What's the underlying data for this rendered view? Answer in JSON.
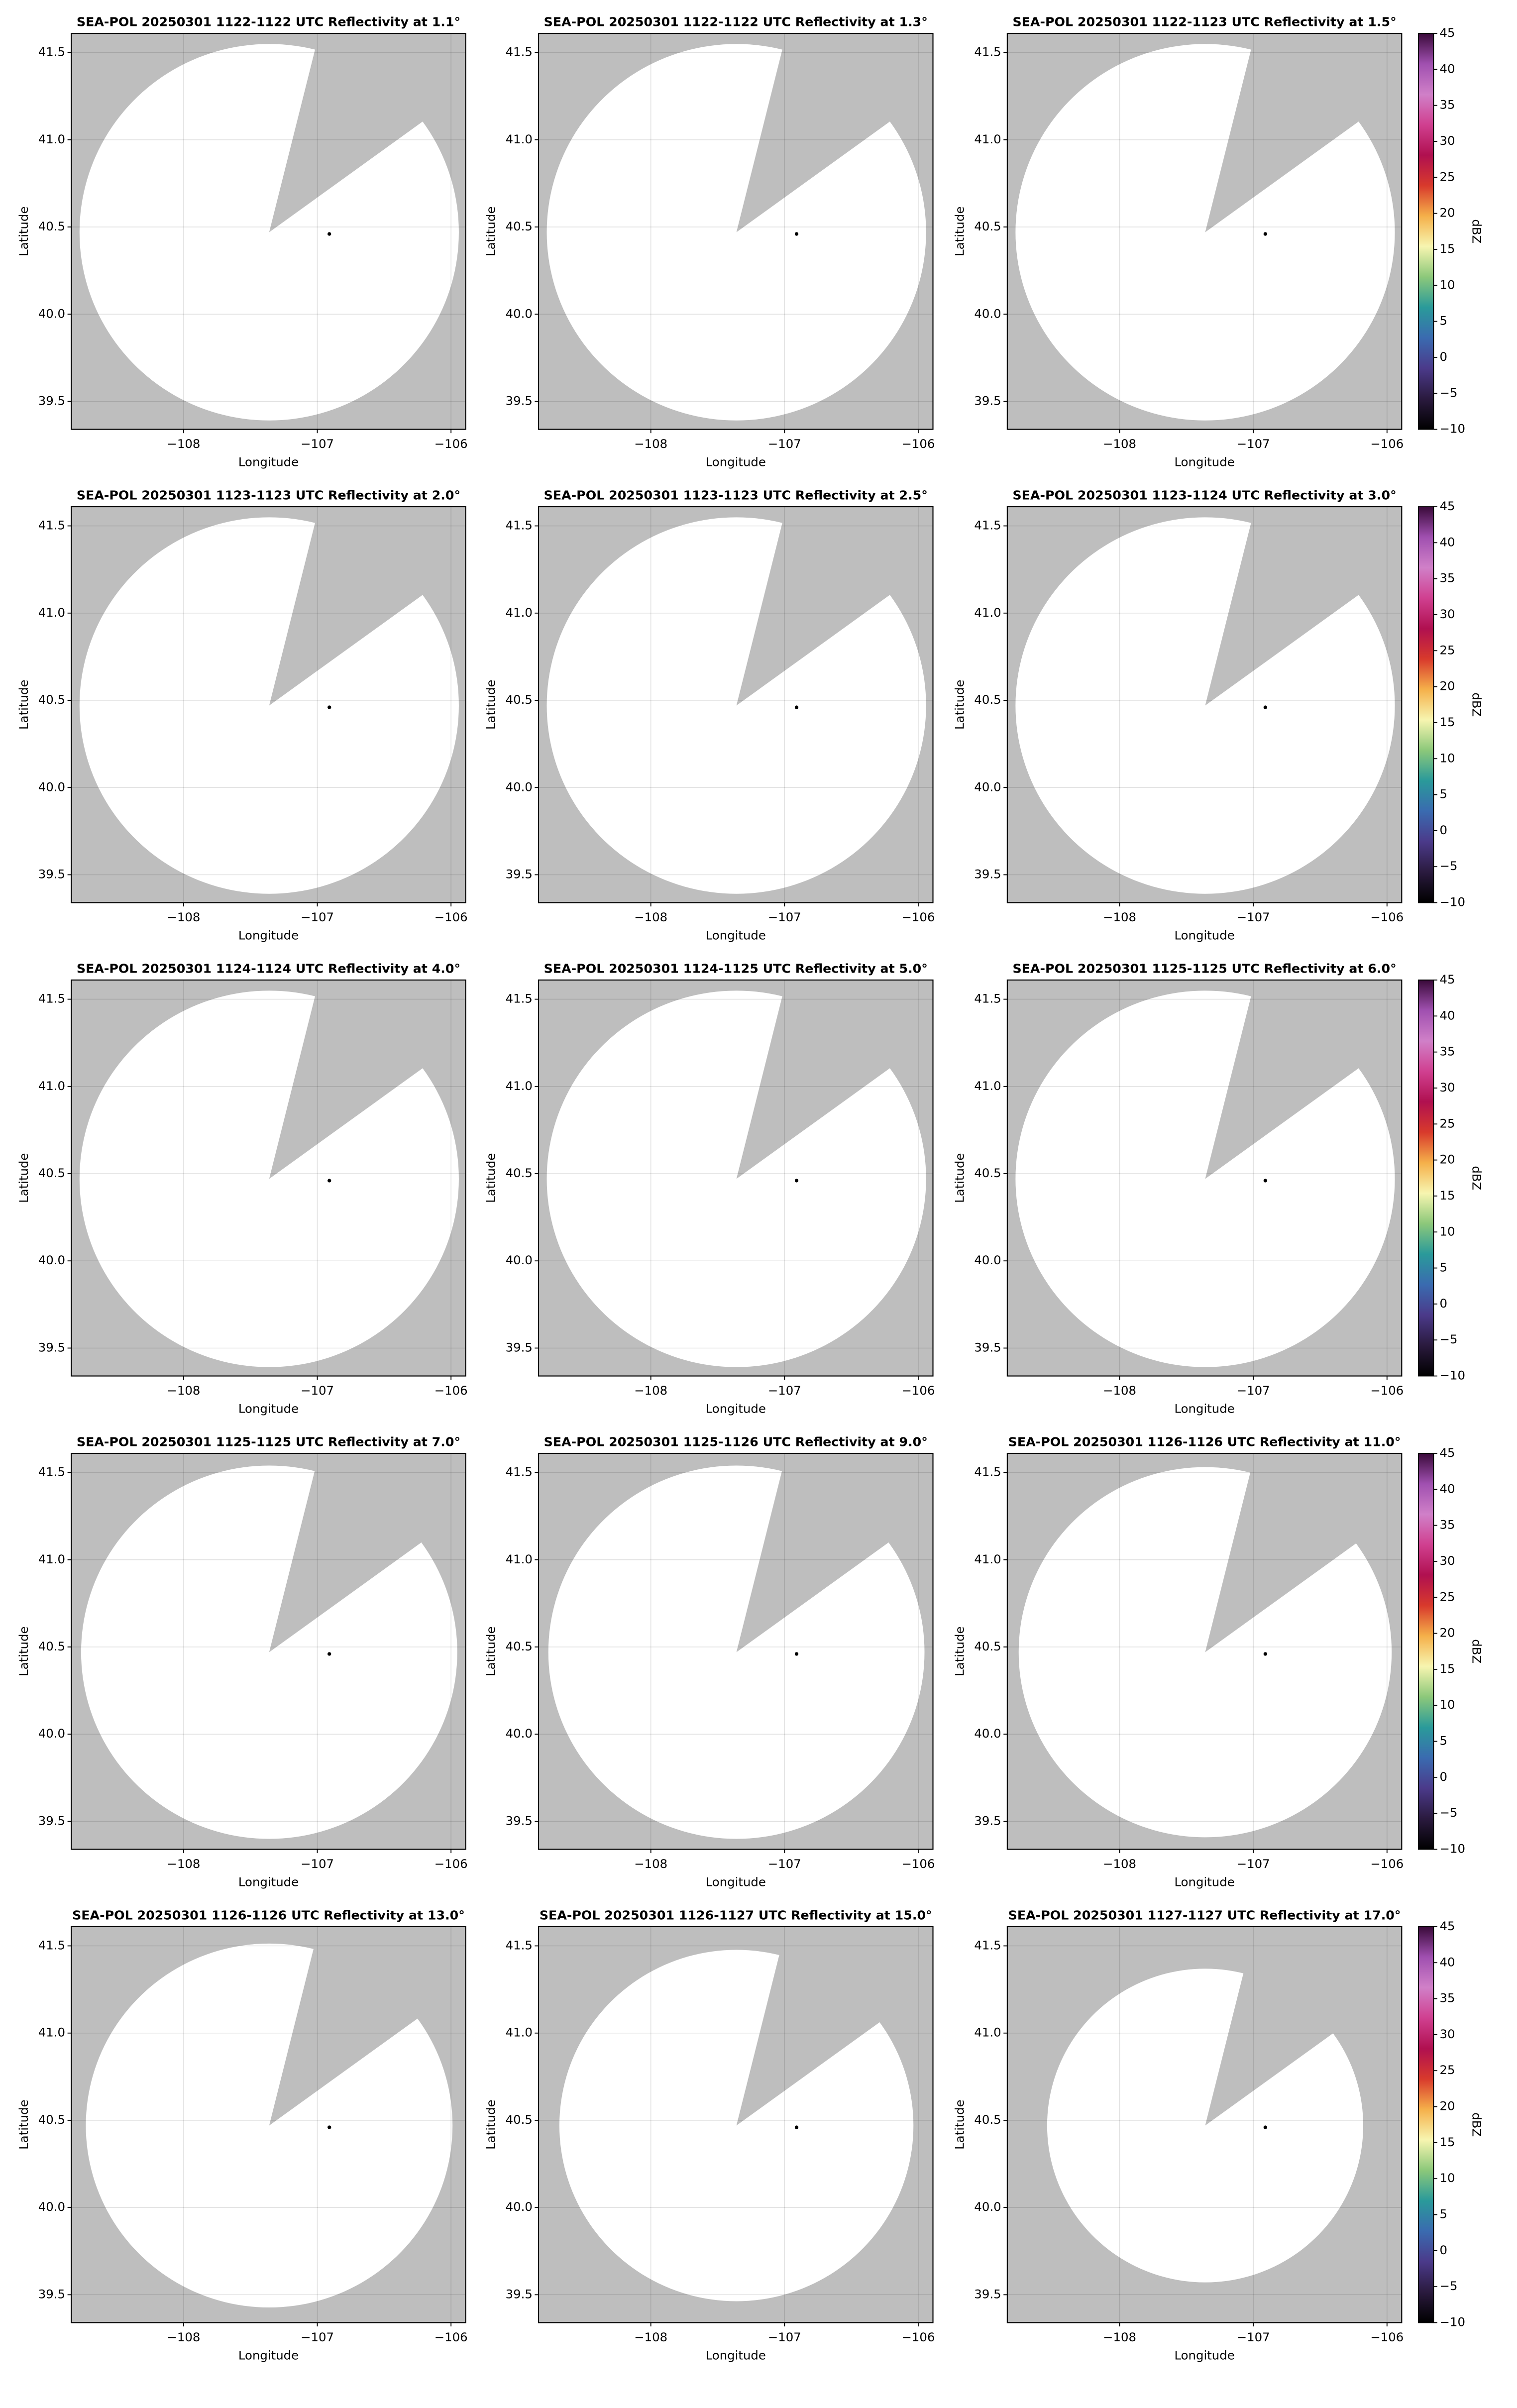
{
  "chart_data": [
    {
      "type": "ppi",
      "title": "SEA-POL 20250301 1122-1122 UTC Reflectivity at 1.1°",
      "x_label": "Longitude",
      "y_label": "Latitude",
      "xlim": [
        -108.84,
        -105.89
      ],
      "ylim": [
        39.34,
        41.61
      ],
      "xticks": [
        {
          "value": -108,
          "label": "−108"
        },
        {
          "value": -107,
          "label": "−107"
        },
        {
          "value": -106,
          "label": "−106"
        }
      ],
      "yticks": [
        39.5,
        {
          "value": 40,
          "label": "40.0"
        },
        40.5,
        {
          "value": 41,
          "label": "41.0"
        },
        41.5
      ],
      "grid": true,
      "background": "#bebebe",
      "coverage_color": "#ffffff",
      "radar": {
        "center": [
          -107.36,
          40.47
        ],
        "range_km": 120,
        "blocked_azimuth": [
          14,
          54
        ]
      },
      "marker": [
        -106.91,
        40.46
      ]
    },
    {
      "type": "ppi",
      "title": "SEA-POL 20250301 1122-1122 UTC Reflectivity at 1.3°",
      "x_label": "Longitude",
      "y_label": "Latitude",
      "xlim": [
        -108.84,
        -105.89
      ],
      "ylim": [
        39.34,
        41.61
      ],
      "xticks": [
        {
          "value": -108,
          "label": "−108"
        },
        {
          "value": -107,
          "label": "−107"
        },
        {
          "value": -106,
          "label": "−106"
        }
      ],
      "yticks": [
        39.5,
        {
          "value": 40,
          "label": "40.0"
        },
        40.5,
        {
          "value": 41,
          "label": "41.0"
        },
        41.5
      ],
      "grid": true,
      "background": "#bebebe",
      "coverage_color": "#ffffff",
      "radar": {
        "center": [
          -107.36,
          40.47
        ],
        "range_km": 120,
        "blocked_azimuth": [
          14,
          54
        ]
      },
      "marker": [
        -106.91,
        40.46
      ]
    },
    {
      "type": "ppi",
      "title": "SEA-POL 20250301 1122-1123 UTC Reflectivity at 1.5°",
      "x_label": "Longitude",
      "y_label": "Latitude",
      "xlim": [
        -108.84,
        -105.89
      ],
      "ylim": [
        39.34,
        41.61
      ],
      "xticks": [
        {
          "value": -108,
          "label": "−108"
        },
        {
          "value": -107,
          "label": "−107"
        },
        {
          "value": -106,
          "label": "−106"
        }
      ],
      "yticks": [
        39.5,
        {
          "value": 40,
          "label": "40.0"
        },
        40.5,
        {
          "value": 41,
          "label": "41.0"
        },
        41.5
      ],
      "grid": true,
      "background": "#bebebe",
      "coverage_color": "#ffffff",
      "radar": {
        "center": [
          -107.36,
          40.47
        ],
        "range_km": 120,
        "blocked_azimuth": [
          14,
          54
        ]
      },
      "marker": [
        -106.91,
        40.46
      ],
      "colorbar": {
        "label": "dBZ",
        "lim": [
          -10,
          45
        ],
        "ticks": [
          {
            "value": -10,
            "label": "−10"
          },
          {
            "value": -5,
            "label": "−5"
          },
          0,
          5,
          10,
          15,
          20,
          25,
          30,
          35,
          40,
          45
        ],
        "colors": [
          "#000000",
          "#2a1a3e",
          "#4b3a8a",
          "#3a6bb0",
          "#2a9a9a",
          "#8cc87a",
          "#f7f5b0",
          "#f5b04a",
          "#d83a2c",
          "#b01050",
          "#d04090",
          "#d080c8",
          "#a050b0",
          "#3a0a3a"
        ]
      }
    },
    {
      "type": "ppi",
      "title": "SEA-POL 20250301 1123-1123 UTC Reflectivity at 2.0°",
      "x_label": "Longitude",
      "y_label": "Latitude",
      "xlim": [
        -108.84,
        -105.89
      ],
      "ylim": [
        39.34,
        41.61
      ],
      "xticks": [
        {
          "value": -108,
          "label": "−108"
        },
        {
          "value": -107,
          "label": "−107"
        },
        {
          "value": -106,
          "label": "−106"
        }
      ],
      "yticks": [
        39.5,
        {
          "value": 40,
          "label": "40.0"
        },
        40.5,
        {
          "value": 41,
          "label": "41.0"
        },
        41.5
      ],
      "grid": true,
      "background": "#bebebe",
      "coverage_color": "#ffffff",
      "radar": {
        "center": [
          -107.36,
          40.47
        ],
        "range_km": 120,
        "blocked_azimuth": [
          14,
          54
        ]
      },
      "marker": [
        -106.91,
        40.46
      ]
    },
    {
      "type": "ppi",
      "title": "SEA-POL 20250301 1123-1123 UTC Reflectivity at 2.5°",
      "x_label": "Longitude",
      "y_label": "Latitude",
      "xlim": [
        -108.84,
        -105.89
      ],
      "ylim": [
        39.34,
        41.61
      ],
      "xticks": [
        {
          "value": -108,
          "label": "−108"
        },
        {
          "value": -107,
          "label": "−107"
        },
        {
          "value": -106,
          "label": "−106"
        }
      ],
      "yticks": [
        39.5,
        {
          "value": 40,
          "label": "40.0"
        },
        40.5,
        {
          "value": 41,
          "label": "41.0"
        },
        41.5
      ],
      "grid": true,
      "background": "#bebebe",
      "coverage_color": "#ffffff",
      "radar": {
        "center": [
          -107.36,
          40.47
        ],
        "range_km": 120,
        "blocked_azimuth": [
          14,
          54
        ]
      },
      "marker": [
        -106.91,
        40.46
      ]
    },
    {
      "type": "ppi",
      "title": "SEA-POL 20250301 1123-1124 UTC Reflectivity at 3.0°",
      "x_label": "Longitude",
      "y_label": "Latitude",
      "xlim": [
        -108.84,
        -105.89
      ],
      "ylim": [
        39.34,
        41.61
      ],
      "xticks": [
        {
          "value": -108,
          "label": "−108"
        },
        {
          "value": -107,
          "label": "−107"
        },
        {
          "value": -106,
          "label": "−106"
        }
      ],
      "yticks": [
        39.5,
        {
          "value": 40,
          "label": "40.0"
        },
        40.5,
        {
          "value": 41,
          "label": "41.0"
        },
        41.5
      ],
      "grid": true,
      "background": "#bebebe",
      "coverage_color": "#ffffff",
      "radar": {
        "center": [
          -107.36,
          40.47
        ],
        "range_km": 120,
        "blocked_azimuth": [
          14,
          54
        ]
      },
      "marker": [
        -106.91,
        40.46
      ],
      "colorbar": {
        "label": "dBZ",
        "lim": [
          -10,
          45
        ],
        "ticks": [
          {
            "value": -10,
            "label": "−10"
          },
          {
            "value": -5,
            "label": "−5"
          },
          0,
          5,
          10,
          15,
          20,
          25,
          30,
          35,
          40,
          45
        ],
        "colors": [
          "#000000",
          "#2a1a3e",
          "#4b3a8a",
          "#3a6bb0",
          "#2a9a9a",
          "#8cc87a",
          "#f7f5b0",
          "#f5b04a",
          "#d83a2c",
          "#b01050",
          "#d04090",
          "#d080c8",
          "#a050b0",
          "#3a0a3a"
        ]
      }
    },
    {
      "type": "ppi",
      "title": "SEA-POL 20250301 1124-1124 UTC Reflectivity at 4.0°",
      "x_label": "Longitude",
      "y_label": "Latitude",
      "xlim": [
        -108.84,
        -105.89
      ],
      "ylim": [
        39.34,
        41.61
      ],
      "xticks": [
        {
          "value": -108,
          "label": "−108"
        },
        {
          "value": -107,
          "label": "−107"
        },
        {
          "value": -106,
          "label": "−106"
        }
      ],
      "yticks": [
        39.5,
        {
          "value": 40,
          "label": "40.0"
        },
        40.5,
        {
          "value": 41,
          "label": "41.0"
        },
        41.5
      ],
      "grid": true,
      "background": "#bebebe",
      "coverage_color": "#ffffff",
      "radar": {
        "center": [
          -107.36,
          40.47
        ],
        "range_km": 120,
        "blocked_azimuth": [
          14,
          54
        ]
      },
      "marker": [
        -106.91,
        40.46
      ]
    },
    {
      "type": "ppi",
      "title": "SEA-POL 20250301 1124-1125 UTC Reflectivity at 5.0°",
      "x_label": "Longitude",
      "y_label": "Latitude",
      "xlim": [
        -108.84,
        -105.89
      ],
      "ylim": [
        39.34,
        41.61
      ],
      "xticks": [
        {
          "value": -108,
          "label": "−108"
        },
        {
          "value": -107,
          "label": "−107"
        },
        {
          "value": -106,
          "label": "−106"
        }
      ],
      "yticks": [
        39.5,
        {
          "value": 40,
          "label": "40.0"
        },
        40.5,
        {
          "value": 41,
          "label": "41.0"
        },
        41.5
      ],
      "grid": true,
      "background": "#bebebe",
      "coverage_color": "#ffffff",
      "radar": {
        "center": [
          -107.36,
          40.47
        ],
        "range_km": 120,
        "blocked_azimuth": [
          14,
          54
        ]
      },
      "marker": [
        -106.91,
        40.46
      ]
    },
    {
      "type": "ppi",
      "title": "SEA-POL 20250301 1125-1125 UTC Reflectivity at 6.0°",
      "x_label": "Longitude",
      "y_label": "Latitude",
      "xlim": [
        -108.84,
        -105.89
      ],
      "ylim": [
        39.34,
        41.61
      ],
      "xticks": [
        {
          "value": -108,
          "label": "−108"
        },
        {
          "value": -107,
          "label": "−107"
        },
        {
          "value": -106,
          "label": "−106"
        }
      ],
      "yticks": [
        39.5,
        {
          "value": 40,
          "label": "40.0"
        },
        40.5,
        {
          "value": 41,
          "label": "41.0"
        },
        41.5
      ],
      "grid": true,
      "background": "#bebebe",
      "coverage_color": "#ffffff",
      "radar": {
        "center": [
          -107.36,
          40.47
        ],
        "range_km": 120,
        "blocked_azimuth": [
          14,
          54
        ]
      },
      "marker": [
        -106.91,
        40.46
      ],
      "colorbar": {
        "label": "dBZ",
        "lim": [
          -10,
          45
        ],
        "ticks": [
          {
            "value": -10,
            "label": "−10"
          },
          {
            "value": -5,
            "label": "−5"
          },
          0,
          5,
          10,
          15,
          20,
          25,
          30,
          35,
          40,
          45
        ],
        "colors": [
          "#000000",
          "#2a1a3e",
          "#4b3a8a",
          "#3a6bb0",
          "#2a9a9a",
          "#8cc87a",
          "#f7f5b0",
          "#f5b04a",
          "#d83a2c",
          "#b01050",
          "#d04090",
          "#d080c8",
          "#a050b0",
          "#3a0a3a"
        ]
      }
    },
    {
      "type": "ppi",
      "title": "SEA-POL 20250301 1125-1125 UTC Reflectivity at 7.0°",
      "x_label": "Longitude",
      "y_label": "Latitude",
      "xlim": [
        -108.84,
        -105.89
      ],
      "ylim": [
        39.34,
        41.61
      ],
      "xticks": [
        {
          "value": -108,
          "label": "−108"
        },
        {
          "value": -107,
          "label": "−107"
        },
        {
          "value": -106,
          "label": "−106"
        }
      ],
      "yticks": [
        39.5,
        {
          "value": 40,
          "label": "40.0"
        },
        40.5,
        {
          "value": 41,
          "label": "41.0"
        },
        41.5
      ],
      "grid": true,
      "background": "#bebebe",
      "coverage_color": "#ffffff",
      "radar": {
        "center": [
          -107.36,
          40.47
        ],
        "range_km": 119,
        "blocked_azimuth": [
          14,
          54
        ]
      },
      "marker": [
        -106.91,
        40.46
      ]
    },
    {
      "type": "ppi",
      "title": "SEA-POL 20250301 1125-1126 UTC Reflectivity at 9.0°",
      "x_label": "Longitude",
      "y_label": "Latitude",
      "xlim": [
        -108.84,
        -105.89
      ],
      "ylim": [
        39.34,
        41.61
      ],
      "xticks": [
        {
          "value": -108,
          "label": "−108"
        },
        {
          "value": -107,
          "label": "−107"
        },
        {
          "value": -106,
          "label": "−106"
        }
      ],
      "yticks": [
        39.5,
        {
          "value": 40,
          "label": "40.0"
        },
        40.5,
        {
          "value": 41,
          "label": "41.0"
        },
        41.5
      ],
      "grid": true,
      "background": "#bebebe",
      "coverage_color": "#ffffff",
      "radar": {
        "center": [
          -107.36,
          40.47
        ],
        "range_km": 119,
        "blocked_azimuth": [
          14,
          54
        ]
      },
      "marker": [
        -106.91,
        40.46
      ]
    },
    {
      "type": "ppi",
      "title": "SEA-POL 20250301 1126-1126 UTC Reflectivity at 11.0°",
      "x_label": "Longitude",
      "y_label": "Latitude",
      "xlim": [
        -108.84,
        -105.89
      ],
      "ylim": [
        39.34,
        41.61
      ],
      "xticks": [
        {
          "value": -108,
          "label": "−108"
        },
        {
          "value": -107,
          "label": "−107"
        },
        {
          "value": -106,
          "label": "−106"
        }
      ],
      "yticks": [
        39.5,
        {
          "value": 40,
          "label": "40.0"
        },
        40.5,
        {
          "value": 41,
          "label": "41.0"
        },
        41.5
      ],
      "grid": true,
      "background": "#bebebe",
      "coverage_color": "#ffffff",
      "radar": {
        "center": [
          -107.36,
          40.47
        ],
        "range_km": 118,
        "blocked_azimuth": [
          14,
          54
        ]
      },
      "marker": [
        -106.91,
        40.46
      ],
      "colorbar": {
        "label": "dBZ",
        "lim": [
          -10,
          45
        ],
        "ticks": [
          {
            "value": -10,
            "label": "−10"
          },
          {
            "value": -5,
            "label": "−5"
          },
          0,
          5,
          10,
          15,
          20,
          25,
          30,
          35,
          40,
          45
        ],
        "colors": [
          "#000000",
          "#2a1a3e",
          "#4b3a8a",
          "#3a6bb0",
          "#2a9a9a",
          "#8cc87a",
          "#f7f5b0",
          "#f5b04a",
          "#d83a2c",
          "#b01050",
          "#d04090",
          "#d080c8",
          "#a050b0",
          "#3a0a3a"
        ]
      }
    },
    {
      "type": "ppi",
      "title": "SEA-POL 20250301 1126-1126 UTC Reflectivity at 13.0°",
      "x_label": "Longitude",
      "y_label": "Latitude",
      "xlim": [
        -108.84,
        -105.89
      ],
      "ylim": [
        39.34,
        41.61
      ],
      "xticks": [
        {
          "value": -108,
          "label": "−108"
        },
        {
          "value": -107,
          "label": "−107"
        },
        {
          "value": -106,
          "label": "−106"
        }
      ],
      "yticks": [
        39.5,
        {
          "value": 40,
          "label": "40.0"
        },
        40.5,
        {
          "value": 41,
          "label": "41.0"
        },
        41.5
      ],
      "grid": true,
      "background": "#bebebe",
      "coverage_color": "#ffffff",
      "radar": {
        "center": [
          -107.36,
          40.47
        ],
        "range_km": 116,
        "blocked_azimuth": [
          14,
          54
        ]
      },
      "marker": [
        -106.91,
        40.46
      ]
    },
    {
      "type": "ppi",
      "title": "SEA-POL 20250301 1126-1127 UTC Reflectivity at 15.0°",
      "x_label": "Longitude",
      "y_label": "Latitude",
      "xlim": [
        -108.84,
        -105.89
      ],
      "ylim": [
        39.34,
        41.61
      ],
      "xticks": [
        {
          "value": -108,
          "label": "−108"
        },
        {
          "value": -107,
          "label": "−107"
        },
        {
          "value": -106,
          "label": "−106"
        }
      ],
      "yticks": [
        39.5,
        {
          "value": 40,
          "label": "40.0"
        },
        40.5,
        {
          "value": 41,
          "label": "41.0"
        },
        41.5
      ],
      "grid": true,
      "background": "#bebebe",
      "coverage_color": "#ffffff",
      "radar": {
        "center": [
          -107.36,
          40.47
        ],
        "range_km": 112,
        "blocked_azimuth": [
          14,
          54
        ]
      },
      "marker": [
        -106.91,
        40.46
      ]
    },
    {
      "type": "ppi",
      "title": "SEA-POL 20250301 1127-1127 UTC Reflectivity at 17.0°",
      "x_label": "Longitude",
      "y_label": "Latitude",
      "xlim": [
        -108.84,
        -105.89
      ],
      "ylim": [
        39.34,
        41.61
      ],
      "xticks": [
        {
          "value": -108,
          "label": "−108"
        },
        {
          "value": -107,
          "label": "−107"
        },
        {
          "value": -106,
          "label": "−106"
        }
      ],
      "yticks": [
        39.5,
        {
          "value": 40,
          "label": "40.0"
        },
        40.5,
        {
          "value": 41,
          "label": "41.0"
        },
        41.5
      ],
      "grid": true,
      "background": "#bebebe",
      "coverage_color": "#ffffff",
      "radar": {
        "center": [
          -107.36,
          40.47
        ],
        "range_km": 100,
        "blocked_azimuth": [
          14,
          54
        ]
      },
      "marker": [
        -106.91,
        40.46
      ],
      "colorbar": {
        "label": "dBZ",
        "lim": [
          -10,
          45
        ],
        "ticks": [
          {
            "value": -10,
            "label": "−10"
          },
          {
            "value": -5,
            "label": "−5"
          },
          0,
          5,
          10,
          15,
          20,
          25,
          30,
          35,
          40,
          45
        ],
        "colors": [
          "#000000",
          "#2a1a3e",
          "#4b3a8a",
          "#3a6bb0",
          "#2a9a9a",
          "#8cc87a",
          "#f7f5b0",
          "#f5b04a",
          "#d83a2c",
          "#b01050",
          "#d04090",
          "#d080c8",
          "#a050b0",
          "#3a0a3a"
        ]
      }
    }
  ]
}
